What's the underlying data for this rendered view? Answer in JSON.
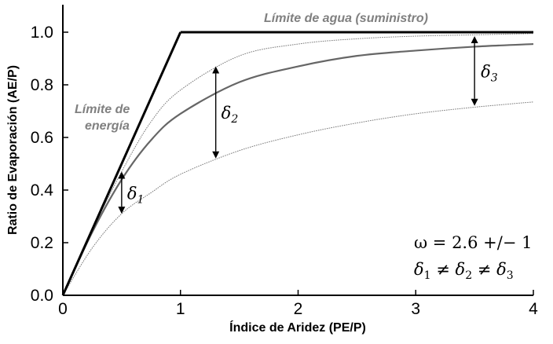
{
  "chart_data": {
    "type": "line",
    "xlabel": "Índice de Aridez (PE/P)",
    "ylabel": "Ratio de Evaporación (AE/P)",
    "xlim": [
      0,
      4
    ],
    "ylim": [
      0,
      1.1
    ],
    "xticks": [
      "0",
      "1",
      "2",
      "3",
      "4"
    ],
    "yticks": [
      "0.0",
      "0.2",
      "0.4",
      "0.6",
      "0.8",
      "1.0"
    ],
    "grid": false,
    "limits": [
      {
        "label": "Límite de energía",
        "points": [
          [
            0,
            0
          ],
          [
            1,
            1
          ]
        ]
      },
      {
        "label": "Límite de agua (suministro)",
        "points": [
          [
            1,
            1
          ],
          [
            4,
            1
          ]
        ]
      }
    ],
    "series": [
      {
        "style": "solid",
        "x": [
          0,
          0.25,
          0.5,
          0.75,
          1,
          1.5,
          2,
          2.5,
          3,
          3.5,
          4
        ],
        "values": [
          0,
          0.24,
          0.44,
          0.59,
          0.69,
          0.81,
          0.87,
          0.91,
          0.93,
          0.945,
          0.955
        ]
      },
      {
        "style": "dotted",
        "x": [
          0,
          0.25,
          0.5,
          0.75,
          1,
          1.5,
          2,
          2.5,
          3,
          3.5,
          4
        ],
        "values": [
          0,
          0.245,
          0.47,
          0.66,
          0.78,
          0.91,
          0.955,
          0.975,
          0.985,
          0.99,
          0.995
        ]
      },
      {
        "style": "dotted",
        "x": [
          0,
          0.25,
          0.5,
          0.75,
          1,
          1.5,
          2,
          2.5,
          3,
          3.5,
          4
        ],
        "values": [
          0,
          0.18,
          0.31,
          0.39,
          0.46,
          0.55,
          0.61,
          0.655,
          0.69,
          0.715,
          0.735
        ]
      }
    ],
    "annotations": {
      "energy_limit": [
        "Límite de",
        "energía"
      ],
      "water_limit": "Límite de agua (suministro)",
      "deltas": [
        {
          "symbol": "δ",
          "sub": "1",
          "x": 0.5,
          "y_from": 0.31,
          "y_to": 0.47
        },
        {
          "symbol": "δ",
          "sub": "2",
          "x": 1.3,
          "y_from": 0.52,
          "y_to": 0.87
        },
        {
          "symbol": "δ",
          "sub": "3",
          "x": 3.5,
          "y_from": 0.72,
          "y_to": 0.985
        }
      ],
      "omega_text": "ω = 2.6 +/− 1",
      "inequality": {
        "symbol": "δ",
        "subs": [
          "1",
          "2",
          "3"
        ],
        "sep": " ≠ "
      }
    }
  }
}
